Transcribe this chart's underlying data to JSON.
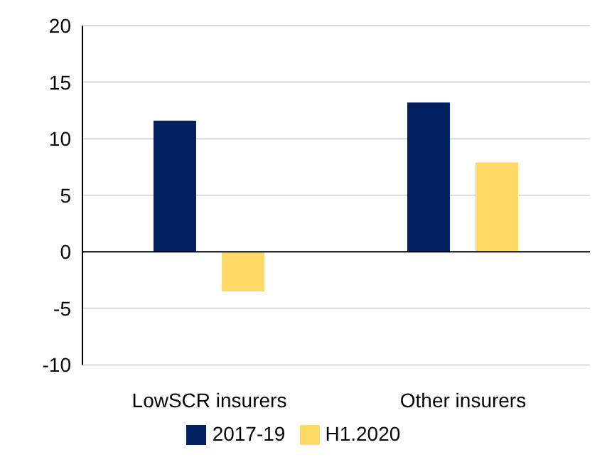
{
  "chart_data": {
    "type": "bar",
    "categories": [
      "LowSCR insurers",
      "Other insurers"
    ],
    "series": [
      {
        "name": "2017-19",
        "color": "#002060",
        "values": [
          11.6,
          13.2
        ]
      },
      {
        "name": "H1.2020",
        "color": "#ffd966",
        "values": [
          -3.5,
          7.9
        ]
      }
    ],
    "ylim": [
      -10,
      20
    ],
    "yticks": [
      -10,
      -5,
      0,
      5,
      10,
      15,
      20
    ],
    "grid": "y",
    "legend": "bottom"
  }
}
